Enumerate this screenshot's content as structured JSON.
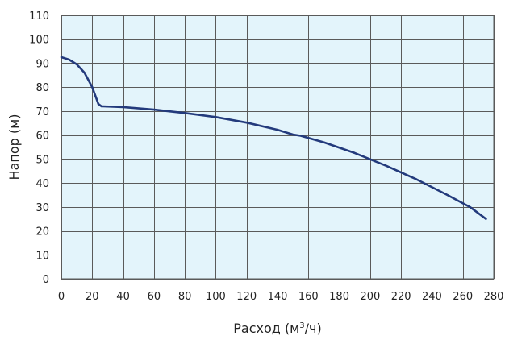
{
  "chart_data": {
    "type": "line",
    "title": "",
    "xlabel": {
      "prefix": "Расход (м",
      "superscript": "3",
      "suffix": "/ч)"
    },
    "ylabel": "Напор (м)",
    "xlim": [
      0,
      280
    ],
    "ylim": [
      0,
      110
    ],
    "xticks": [
      "0",
      "20",
      "40",
      "60",
      "80",
      "100",
      "120",
      "140",
      "160",
      "180",
      "200",
      "220",
      "240",
      "260",
      "280"
    ],
    "yticks": [
      "0",
      "10",
      "20",
      "30",
      "40",
      "50",
      "60",
      "70",
      "80",
      "90",
      "100",
      "110"
    ],
    "grid": true,
    "legend": "none",
    "colors": {
      "plot_background": "#e3f4fb",
      "grid": "#5a5a5a",
      "line": "#233a7c"
    },
    "series": [
      {
        "x": [
          0,
          5,
          10,
          15,
          20,
          24,
          26,
          27,
          40,
          60,
          80,
          100,
          120,
          140,
          150,
          155,
          170,
          190,
          210,
          230,
          250,
          265,
          275
        ],
        "y": [
          92.5,
          91.5,
          89.5,
          86,
          80,
          73,
          72,
          72,
          71.7,
          70.6,
          69.2,
          67.5,
          65.2,
          62.2,
          60.2,
          59.7,
          57,
          52.5,
          47.3,
          41.5,
          35,
          29.8,
          25
        ]
      }
    ]
  }
}
